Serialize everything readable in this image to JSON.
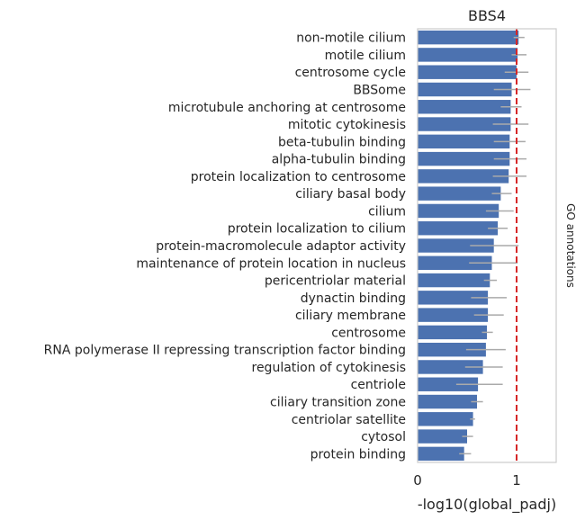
{
  "chart_data": {
    "type": "bar",
    "orientation": "horizontal",
    "title": "BBS4",
    "xlabel": "-log10(global_padj)",
    "ylabel": "",
    "side_label": "GO annotations",
    "xlim": [
      0,
      1.4
    ],
    "xticks": [
      0,
      1
    ],
    "threshold": 1,
    "colors": {
      "bar": "#4c72b0",
      "error": "#aaaaaa",
      "threshold": "#d62728",
      "frame": "#cccccc"
    },
    "categories": [
      "non-motile cilium",
      "motile cilium",
      "centrosome cycle",
      "BBSome",
      "microtubule anchoring at centrosome",
      "mitotic cytokinesis",
      "beta-tubulin binding",
      "alpha-tubulin binding",
      "protein localization to centrosome",
      "ciliary basal body",
      "cilium",
      "protein localization to cilium",
      "protein-macromolecule adaptor activity",
      "maintenance of protein location in nucleus",
      "pericentriolar material",
      "dynactin binding",
      "ciliary membrane",
      "centrosome",
      "RNA polymerase II repressing transcription factor binding",
      "regulation of cytokinesis",
      "centriole",
      "ciliary transition zone",
      "centriolar satellite",
      "cytosol",
      "protein binding"
    ],
    "values": [
      1.02,
      1.01,
      1.0,
      0.95,
      0.94,
      0.94,
      0.93,
      0.93,
      0.92,
      0.84,
      0.82,
      0.81,
      0.77,
      0.75,
      0.73,
      0.71,
      0.71,
      0.7,
      0.69,
      0.66,
      0.61,
      0.6,
      0.56,
      0.5,
      0.47
    ],
    "error_low": [
      0.97,
      0.95,
      0.88,
      0.77,
      0.84,
      0.76,
      0.77,
      0.77,
      0.76,
      0.75,
      0.69,
      0.71,
      0.53,
      0.52,
      0.67,
      0.54,
      0.57,
      0.65,
      0.49,
      0.48,
      0.39,
      0.54,
      0.53,
      0.45,
      0.42
    ],
    "error_high": [
      1.08,
      1.1,
      1.12,
      1.14,
      1.05,
      1.12,
      1.09,
      1.1,
      1.1,
      0.95,
      0.97,
      0.91,
      1.02,
      1.01,
      0.8,
      0.9,
      0.87,
      0.76,
      0.89,
      0.86,
      0.86,
      0.66,
      0.58,
      0.56,
      0.54
    ]
  }
}
